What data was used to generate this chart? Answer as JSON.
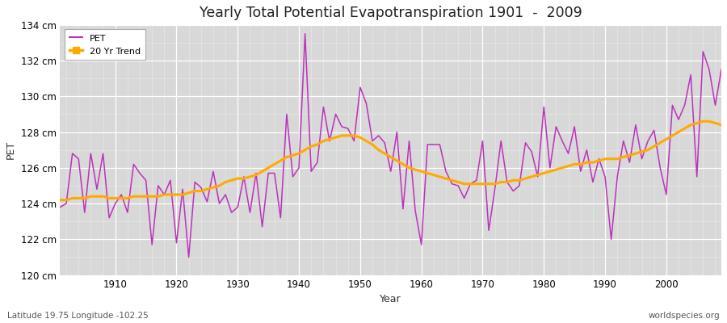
{
  "title": "Yearly Total Potential Evapotranspiration 1901  -  2009",
  "xlabel": "Year",
  "ylabel": "PET",
  "lat_lon_label": "Latitude 19.75 Longitude -102.25",
  "watermark": "worldspecies.org",
  "pet_line_color": "#bb33bb",
  "trend_line_color": "#ffaa00",
  "fig_bg_color": "#ffffff",
  "plot_bg_color": "#d8d8d8",
  "grid_color": "#ffffff",
  "ylim": [
    120,
    134
  ],
  "ytick_labels": [
    "120 cm",
    "122 cm",
    "124 cm",
    "126 cm",
    "128 cm",
    "130 cm",
    "132 cm",
    "134 cm"
  ],
  "ytick_values": [
    120,
    122,
    124,
    126,
    128,
    130,
    132,
    134
  ],
  "years": [
    1901,
    1902,
    1903,
    1904,
    1905,
    1906,
    1907,
    1908,
    1909,
    1910,
    1911,
    1912,
    1913,
    1914,
    1915,
    1916,
    1917,
    1918,
    1919,
    1920,
    1921,
    1922,
    1923,
    1924,
    1925,
    1926,
    1927,
    1928,
    1929,
    1930,
    1931,
    1932,
    1933,
    1934,
    1935,
    1936,
    1937,
    1938,
    1939,
    1940,
    1941,
    1942,
    1943,
    1944,
    1945,
    1946,
    1947,
    1948,
    1949,
    1950,
    1951,
    1952,
    1953,
    1954,
    1955,
    1956,
    1957,
    1958,
    1959,
    1960,
    1961,
    1962,
    1963,
    1964,
    1965,
    1966,
    1967,
    1968,
    1969,
    1970,
    1971,
    1972,
    1973,
    1974,
    1975,
    1976,
    1977,
    1978,
    1979,
    1980,
    1981,
    1982,
    1983,
    1984,
    1985,
    1986,
    1987,
    1988,
    1989,
    1990,
    1991,
    1992,
    1993,
    1994,
    1995,
    1996,
    1997,
    1998,
    1999,
    2000,
    2001,
    2002,
    2003,
    2004,
    2005,
    2006,
    2007,
    2008,
    2009
  ],
  "pet_values": [
    123.8,
    124.0,
    126.8,
    126.5,
    123.5,
    126.8,
    124.8,
    126.8,
    123.2,
    124.0,
    124.5,
    123.5,
    126.2,
    125.7,
    125.3,
    121.7,
    125.0,
    124.5,
    125.3,
    121.8,
    124.8,
    121.0,
    125.2,
    124.9,
    124.1,
    125.8,
    124.0,
    124.5,
    123.5,
    123.8,
    125.5,
    123.5,
    125.7,
    122.7,
    125.7,
    125.7,
    123.2,
    129.0,
    125.5,
    126.0,
    133.5,
    125.8,
    126.3,
    129.4,
    127.5,
    129.0,
    128.3,
    128.2,
    127.5,
    130.5,
    129.6,
    127.5,
    127.8,
    127.4,
    125.8,
    128.0,
    123.7,
    127.5,
    123.6,
    121.7,
    127.3,
    127.3,
    127.3,
    125.8,
    125.1,
    125.0,
    124.3,
    125.1,
    125.3,
    127.5,
    122.5,
    124.8,
    127.5,
    125.2,
    124.7,
    125.0,
    127.4,
    126.9,
    125.5,
    129.4,
    126.0,
    128.3,
    127.5,
    126.8,
    128.3,
    125.8,
    127.0,
    125.2,
    126.5,
    125.5,
    122.0,
    125.5,
    127.5,
    126.3,
    128.4,
    126.5,
    127.5,
    128.1,
    126.0,
    124.5,
    129.5,
    128.7,
    129.5,
    131.2,
    125.5,
    132.5,
    131.5,
    129.5,
    131.5
  ],
  "trend_values": [
    124.2,
    124.2,
    124.3,
    124.3,
    124.3,
    124.4,
    124.4,
    124.4,
    124.3,
    124.3,
    124.3,
    124.3,
    124.4,
    124.4,
    124.4,
    124.4,
    124.4,
    124.5,
    124.5,
    124.5,
    124.5,
    124.6,
    124.7,
    124.7,
    124.8,
    124.9,
    125.0,
    125.2,
    125.3,
    125.4,
    125.4,
    125.5,
    125.6,
    125.8,
    126.0,
    126.2,
    126.4,
    126.6,
    126.7,
    126.8,
    127.0,
    127.2,
    127.3,
    127.5,
    127.6,
    127.7,
    127.8,
    127.8,
    127.8,
    127.7,
    127.5,
    127.3,
    127.0,
    126.8,
    126.6,
    126.4,
    126.2,
    126.0,
    125.9,
    125.8,
    125.7,
    125.6,
    125.5,
    125.4,
    125.3,
    125.2,
    125.1,
    125.1,
    125.1,
    125.1,
    125.1,
    125.1,
    125.2,
    125.2,
    125.3,
    125.3,
    125.4,
    125.5,
    125.6,
    125.7,
    125.8,
    125.9,
    126.0,
    126.1,
    126.2,
    126.2,
    126.3,
    126.3,
    126.4,
    126.5,
    126.5,
    126.5,
    126.6,
    126.7,
    126.8,
    126.9,
    127.0,
    127.2,
    127.4,
    127.6,
    127.8,
    128.0,
    128.2,
    128.4,
    128.5,
    128.6,
    128.6,
    128.5,
    128.4
  ]
}
